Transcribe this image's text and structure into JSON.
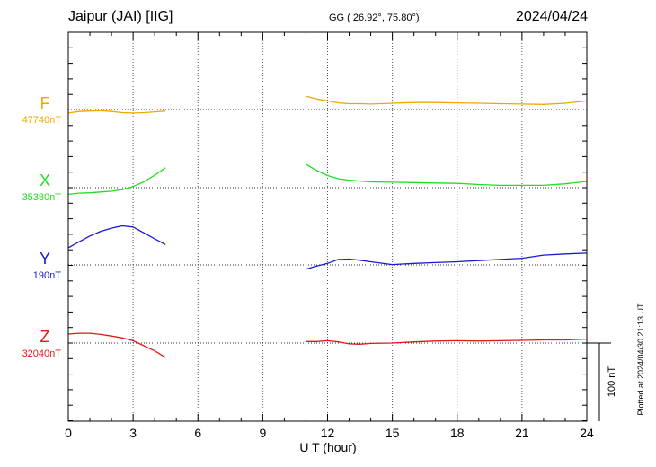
{
  "header": {
    "station": "Jaipur (JAI)  [IIG]",
    "coords": "GG ( 26.92°,  75.80°)",
    "date": "2024/04/24"
  },
  "footer": {
    "plotted": "Plotted at 2024/04/30 21:13 UT"
  },
  "chart_data": {
    "type": "line",
    "xlabel": "U T (hour)",
    "xlim": [
      0,
      24
    ],
    "xticks": [
      0,
      3,
      6,
      9,
      12,
      15,
      18,
      21,
      24
    ],
    "grid": true,
    "scale_bar": {
      "value": 100,
      "label": "100 nT"
    },
    "series": [
      {
        "name": "F",
        "color": "#f0a800",
        "baseline_label": "47740nT",
        "baseline": 47740,
        "x": [
          0,
          0.5,
          1,
          1.5,
          2,
          2.5,
          3,
          3.5,
          4,
          4.5,
          null,
          11,
          11.5,
          12,
          12.5,
          13,
          13.5,
          14,
          15,
          16,
          17,
          18,
          19,
          20,
          21,
          22,
          23,
          24
        ],
        "y": [
          47735.5,
          47737.5,
          47738,
          47738.5,
          47737.5,
          47736,
          47735.5,
          47736,
          47737,
          47738,
          null,
          47757,
          47753.5,
          47751,
          47748.5,
          47747.5,
          47747.5,
          47747,
          47748,
          47749,
          47749,
          47748.5,
          47748,
          47747.5,
          47747,
          47746.5,
          47748,
          47751
        ]
      },
      {
        "name": "X",
        "color": "#22dd22",
        "baseline_label": "35380nT",
        "baseline": 35380,
        "x": [
          0,
          0.5,
          1,
          1.5,
          2,
          2.5,
          3,
          3.5,
          4,
          4.5,
          null,
          11,
          11.5,
          12,
          12.5,
          13,
          13.5,
          14,
          15,
          16,
          17,
          18,
          19,
          20,
          21,
          22,
          23,
          24
        ],
        "y": [
          35371.5,
          35373,
          35373.5,
          35374.5,
          35375.5,
          35377.5,
          35381.5,
          35387.5,
          35396,
          35405.5,
          null,
          35410,
          35402,
          35395.5,
          35391.5,
          35389.5,
          35388.5,
          35387.5,
          35387,
          35386.5,
          35386,
          35385.5,
          35384,
          35383,
          35383,
          35383,
          35385,
          35388
        ]
      },
      {
        "name": "Y",
        "color": "#1a1ad0",
        "baseline_label": "190nT",
        "baseline": 190,
        "x": [
          0,
          0.5,
          1,
          1.5,
          2,
          2.5,
          3,
          3.5,
          4,
          4.5,
          null,
          11,
          11.5,
          12,
          12.5,
          13,
          13.5,
          14,
          15,
          16,
          17,
          18,
          19,
          20,
          21,
          22,
          23,
          24
        ],
        "y": [
          212,
          219.5,
          227,
          233,
          237,
          240,
          238.5,
          231,
          223.5,
          216,
          null,
          184.5,
          188.5,
          192,
          197,
          197.5,
          196,
          194,
          190.5,
          192,
          193,
          194,
          195.5,
          197,
          198.5,
          202.5,
          204,
          205
        ]
      },
      {
        "name": "Z",
        "color": "#e01818",
        "baseline_label": "32040nT",
        "baseline": 32040,
        "x": [
          0,
          0.5,
          1,
          1.5,
          2,
          2.5,
          3,
          3.5,
          4,
          4.5,
          null,
          11,
          11.5,
          12,
          12.5,
          13,
          13.5,
          14,
          15,
          16,
          17,
          18,
          19,
          20,
          21,
          22,
          23,
          24
        ],
        "y": [
          32051.5,
          32052.5,
          32052.5,
          32051,
          32049,
          32046.5,
          32043,
          32036.5,
          32030,
          32021.5,
          null,
          32042,
          32042,
          32043,
          32041.5,
          32039,
          32038.5,
          32039.5,
          32040,
          32041.5,
          32042.5,
          32043,
          32042.5,
          32043,
          32043.5,
          32044,
          32044,
          32045
        ]
      }
    ]
  }
}
